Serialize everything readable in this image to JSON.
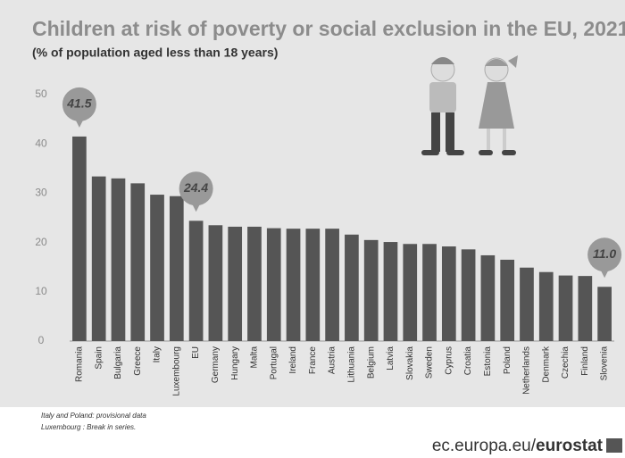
{
  "chart_data": {
    "type": "bar",
    "title": "Children at risk of poverty or social exclusion in the EU, 2021",
    "subtitle": "(% of population aged less than 18 years)",
    "categories": [
      "Romania",
      "Spain",
      "Bulgaria",
      "Greece",
      "Italy",
      "Luxembourg",
      "EU",
      "Germany",
      "Hungary",
      "Malta",
      "Portugal",
      "Ireland",
      "France",
      "Austria",
      "Lithuania",
      "Belgium",
      "Latvia",
      "Slovakia",
      "Sweden",
      "Cyprus",
      "Croatia",
      "Estonia",
      "Poland",
      "Netherlands",
      "Denmark",
      "Czechia",
      "Finland",
      "Slovenia"
    ],
    "values": [
      41.5,
      33.4,
      33.0,
      32.0,
      29.7,
      29.4,
      24.4,
      23.5,
      23.2,
      23.2,
      22.9,
      22.8,
      22.8,
      22.8,
      21.6,
      20.5,
      20.1,
      19.7,
      19.7,
      19.2,
      18.6,
      17.4,
      16.5,
      14.9,
      14.0,
      13.3,
      13.2,
      11.0
    ],
    "value_labels": [
      "41.5",
      null,
      null,
      null,
      null,
      null,
      "24.4",
      null,
      null,
      null,
      null,
      null,
      null,
      null,
      null,
      null,
      null,
      null,
      null,
      null,
      null,
      null,
      null,
      null,
      null,
      null,
      null,
      "11.0"
    ],
    "color": "#555555",
    "ylim": [
      0,
      50
    ],
    "yticks": [
      0,
      10,
      20,
      30,
      40,
      50
    ],
    "grid": false,
    "footnotes": [
      "Italy and Poland: provisional data",
      "Luxembourg : Break in series."
    ],
    "source": [
      "ec.europa.eu/",
      "eurostat"
    ]
  }
}
